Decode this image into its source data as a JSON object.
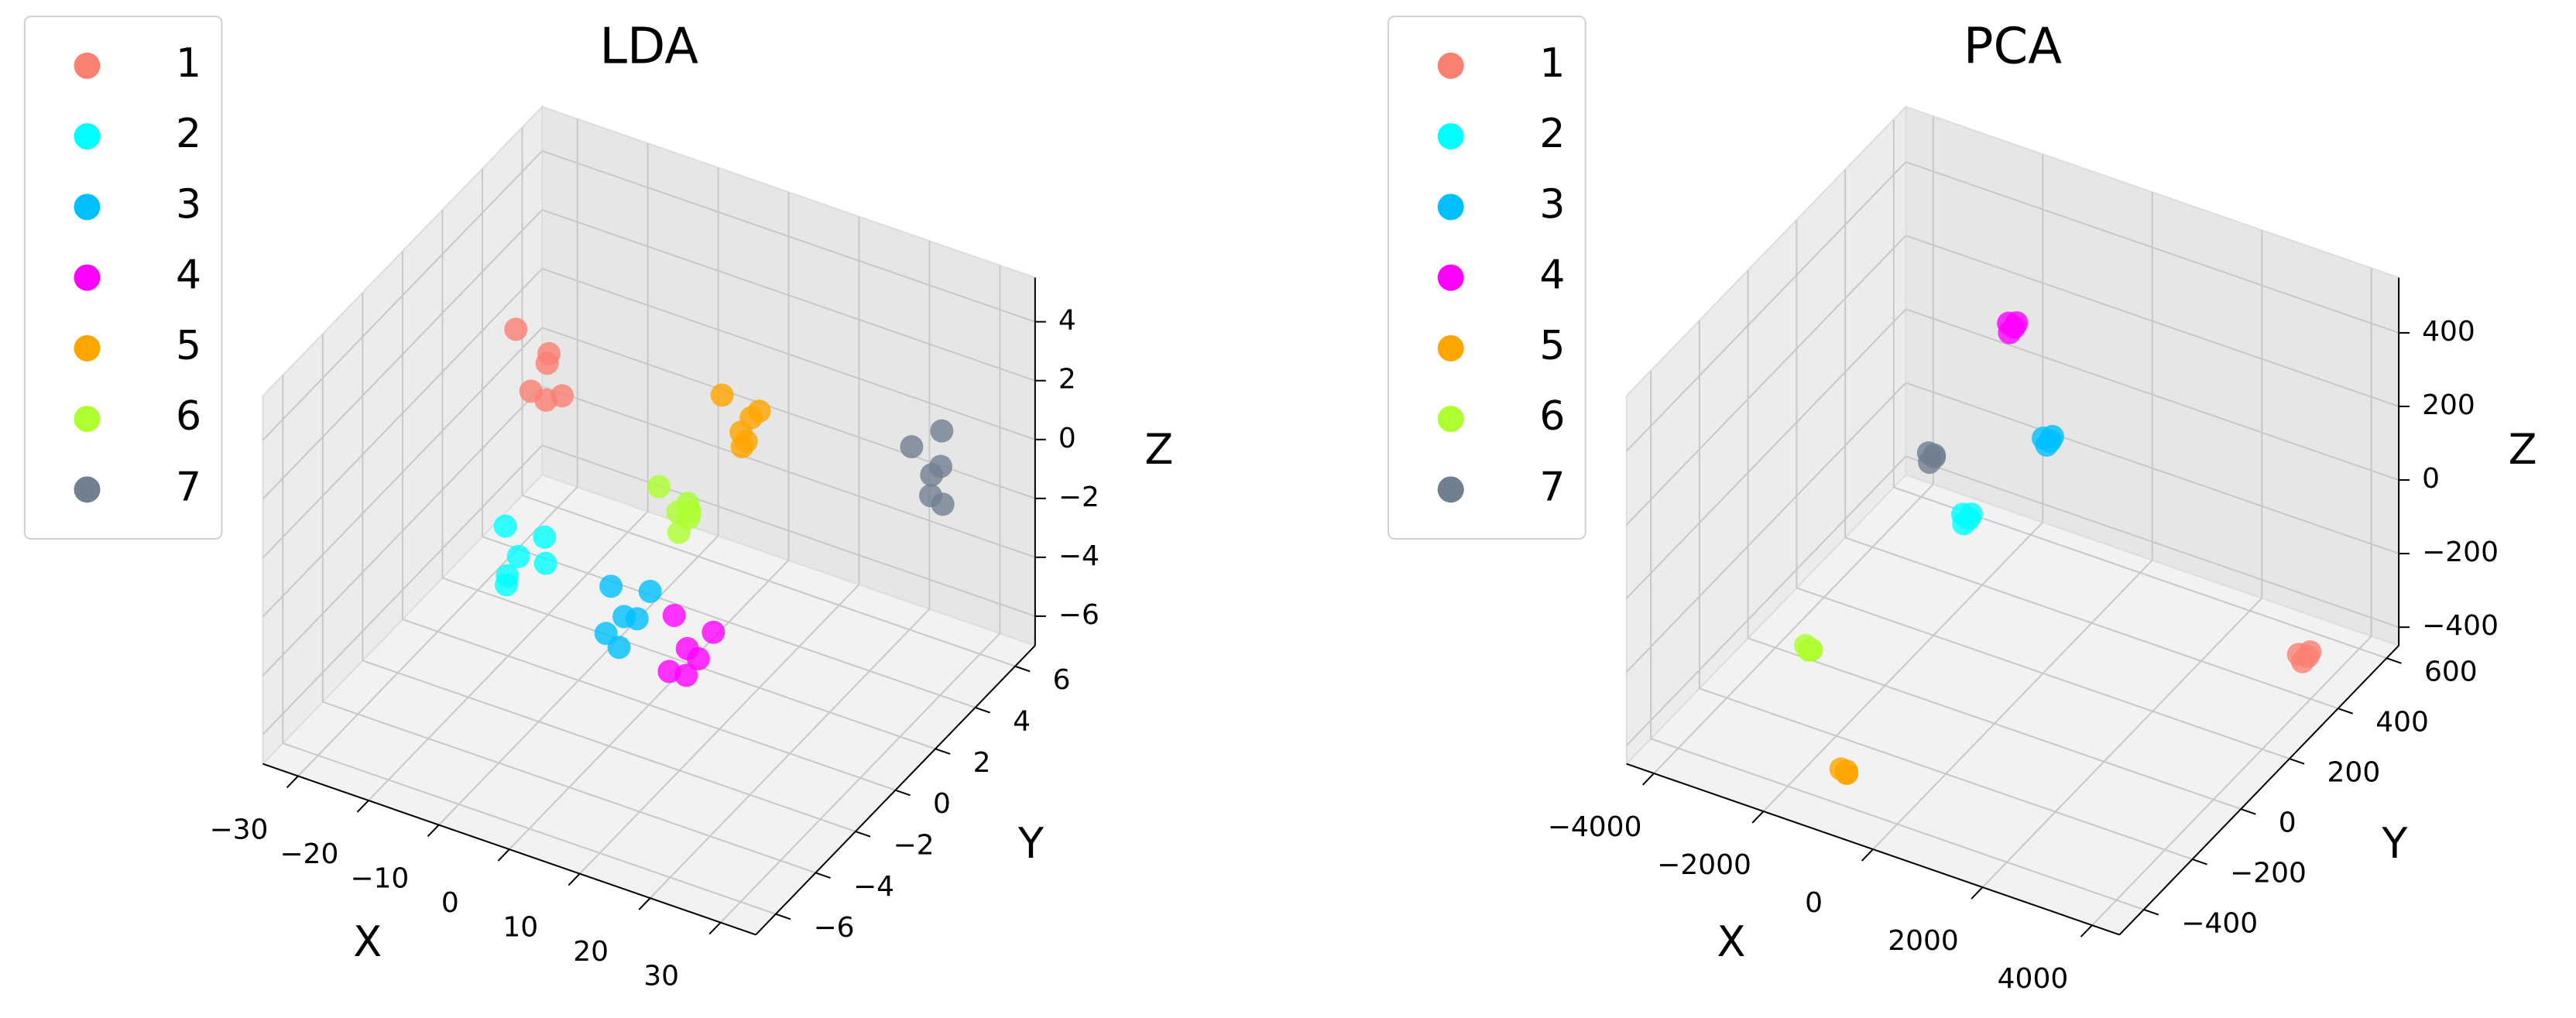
{
  "chart_data": [
    {
      "type": "scatter3d",
      "title": "LDA",
      "xlabel": "X",
      "ylabel": "Y",
      "zlabel": "Z",
      "xlim": [
        -35,
        35
      ],
      "ylim": [
        -7,
        7
      ],
      "zlim": [
        -7,
        5.5
      ],
      "xticks": [
        {
          "value": -30,
          "label": "−30"
        },
        {
          "value": -20,
          "label": "−20"
        },
        {
          "value": -10,
          "label": "−10"
        },
        0,
        10,
        20,
        30
      ],
      "yticks": [
        {
          "value": -6,
          "label": "−6"
        },
        {
          "value": -4,
          "label": "−4"
        },
        {
          "value": -2,
          "label": "−2"
        },
        0,
        2,
        4,
        6
      ],
      "zticks": [
        {
          "value": -6,
          "label": "−6"
        },
        {
          "value": -4,
          "label": "−4"
        },
        {
          "value": -2,
          "label": "−2"
        },
        0,
        2,
        4
      ],
      "series": [
        {
          "name": "1",
          "color": "#fa8072",
          "x": [
            -24,
            -21,
            -18,
            -22,
            -19,
            -23
          ],
          "y": [
            1.8,
            2.4,
            2.0,
            2.6,
            1.6,
            2.2
          ],
          "z": [
            2.5,
            1.5,
            0.6,
            -0.3,
            1.9,
            0.2
          ]
        },
        {
          "name": "2",
          "color": "#00ffff",
          "x": [
            -17,
            -14,
            -12,
            -15,
            -11,
            -16
          ],
          "y": [
            -1.2,
            -1.6,
            -1.0,
            -1.8,
            -1.3,
            -1.5
          ],
          "z": [
            -1.5,
            -2.0,
            -1.6,
            -2.6,
            -2.2,
            -3.2
          ]
        },
        {
          "name": "3",
          "color": "#00bfff",
          "x": [
            -2,
            1,
            3,
            -1,
            2,
            0
          ],
          "y": [
            -1.2,
            -1.6,
            -1.0,
            -1.8,
            -1.3,
            -1.5
          ],
          "z": [
            -2.3,
            -2.8,
            -2.2,
            -3.4,
            -3.0,
            -4.0
          ]
        },
        {
          "name": "4",
          "color": "#ff00ff",
          "x": [
            5,
            8,
            10,
            6,
            9,
            7
          ],
          "y": [
            -0.5,
            -0.9,
            -0.3,
            -1.1,
            -0.7,
            -0.6
          ],
          "z": [
            -3.2,
            -3.8,
            -3.5,
            -4.6,
            -4.2,
            -5.0
          ]
        },
        {
          "name": "5",
          "color": "#ffa500",
          "x": [
            5,
            8,
            10,
            6,
            9,
            7
          ],
          "y": [
            1.9,
            2.3,
            2.0,
            2.5,
            1.7,
            2.2
          ],
          "z": [
            2.6,
            1.8,
            2.4,
            1.0,
            1.5,
            0.8
          ]
        },
        {
          "name": "6",
          "color": "#adff2f",
          "x": [
            -2,
            1,
            3,
            -1,
            2,
            0
          ],
          "y": [
            1.2,
            1.6,
            1.0,
            1.8,
            1.3,
            1.5
          ],
          "z": [
            -0.6,
            -1.2,
            -0.9,
            -1.8,
            -1.4,
            -2.2
          ]
        },
        {
          "name": "7",
          "color": "#708090",
          "x": [
            22,
            25,
            27,
            23,
            26,
            24
          ],
          "y": [
            5.4,
            5.8,
            5.2,
            6.0,
            5.5,
            5.7
          ],
          "z": [
            -0.2,
            -0.9,
            -1.6,
            -2.2,
            0.6,
            -1.2
          ]
        }
      ]
    },
    {
      "type": "scatter3d",
      "title": "PCA",
      "xlabel": "X",
      "ylabel": "Y",
      "zlabel": "Z",
      "xlim": [
        -4500,
        4500
      ],
      "ylim": [
        -500,
        650
      ],
      "zlim": [
        -450,
        550
      ],
      "xticks": [
        {
          "value": -4000,
          "label": "−4000"
        },
        {
          "value": -2000,
          "label": "−2000"
        },
        0,
        2000,
        4000
      ],
      "yticks": [
        {
          "value": -400,
          "label": "−400"
        },
        {
          "value": -200,
          "label": "−200"
        },
        0,
        200,
        400,
        600
      ],
      "zticks": [
        {
          "value": -400,
          "label": "−400"
        },
        {
          "value": -200,
          "label": "−200"
        },
        0,
        200,
        400
      ],
      "series": [
        {
          "name": "1",
          "color": "#fa8072",
          "x": [
            4000,
            4080,
            4030,
            4100
          ],
          "y": [
            350,
            370,
            360,
            375
          ],
          "z": [
            -295,
            -310,
            -320,
            -300
          ]
        },
        {
          "name": "2",
          "color": "#00ffff",
          "x": [
            -1400,
            -1330,
            -1360,
            -1310
          ],
          "y": [
            185,
            195,
            180,
            200
          ],
          "z": [
            -80,
            -95,
            -100,
            -85
          ]
        },
        {
          "name": "3",
          "color": "#00bfff",
          "x": [
            -40,
            20,
            0,
            40
          ],
          "y": [
            210,
            225,
            215,
            230
          ],
          "z": [
            180,
            165,
            160,
            175
          ]
        },
        {
          "name": "4",
          "color": "#ff00ff",
          "x": [
            -940,
            -880,
            -900,
            -860
          ],
          "y": [
            270,
            280,
            265,
            285
          ],
          "z": [
            405,
            390,
            385,
            400
          ]
        },
        {
          "name": "5",
          "color": "#ffa500",
          "x": [
            -940,
            -880,
            -900,
            -860
          ],
          "y": [
            -420,
            -410,
            -405,
            -415
          ],
          "z": [
            -335,
            -350,
            -355,
            -340
          ]
        },
        {
          "name": "6",
          "color": "#adff2f",
          "x": [
            -2740,
            -2680,
            -2700,
            -2660
          ],
          "y": [
            -160,
            -150,
            -145,
            -165
          ],
          "z": [
            -270,
            -285,
            -290,
            -275
          ]
        },
        {
          "name": "7",
          "color": "#708090",
          "x": [
            -2290,
            -2230,
            -2250,
            -2210
          ],
          "y": [
            245,
            255,
            240,
            250
          ],
          "z": [
            0,
            -15,
            -20,
            -5
          ]
        }
      ]
    }
  ]
}
